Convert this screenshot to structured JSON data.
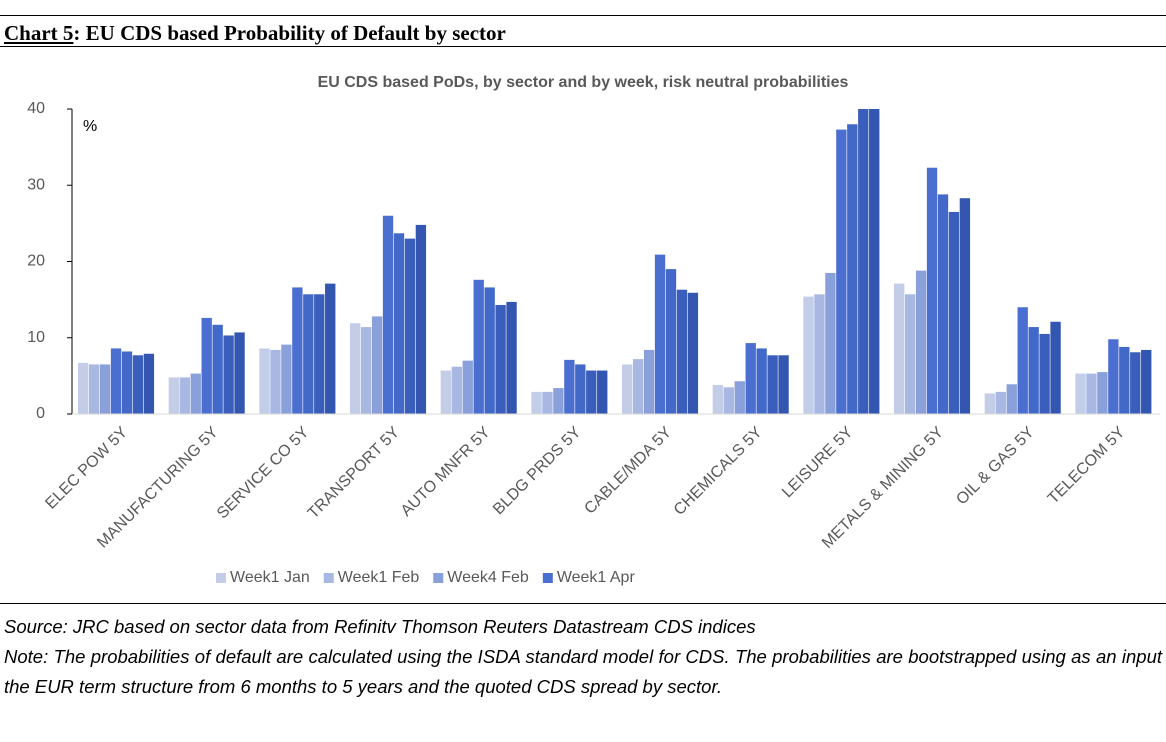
{
  "header": {
    "label": "Chart 5",
    "title": ": EU CDS based Probability of Default by sector"
  },
  "chart_data": {
    "type": "bar",
    "title": "EU CDS based PoDs, by sector and by week, risk neutral probabilities",
    "y_unit": "%",
    "categories": [
      "ELEC POW 5Y",
      "MANUFACTURING 5Y",
      "SERVICE CO 5Y",
      "TRANSPORT 5Y",
      "AUTO MNFR 5Y",
      "BLDG PRDS 5Y",
      "CABLE/MDA 5Y",
      "CHEMICALS 5Y",
      "LEISURE 5Y",
      "METALS & MINING 5Y",
      "OIL & GAS 5Y",
      "TELECOM 5Y"
    ],
    "series": [
      {
        "name": "Week1 Jan",
        "color": "#c3cde8",
        "values": [
          6.7,
          4.8,
          8.6,
          11.9,
          5.7,
          2.9,
          6.5,
          3.8,
          15.4,
          17.1,
          2.7,
          5.3
        ]
      },
      {
        "name": "Week1 Feb",
        "color": "#a8b8e3",
        "values": [
          6.5,
          4.8,
          8.4,
          11.4,
          6.2,
          2.9,
          7.2,
          3.5,
          15.7,
          15.7,
          2.9,
          5.3
        ]
      },
      {
        "name": "Week4 Feb",
        "color": "#8aa0db",
        "values": [
          6.5,
          5.3,
          9.1,
          12.8,
          7.0,
          3.4,
          8.4,
          4.3,
          18.5,
          18.8,
          3.9,
          5.5
        ]
      },
      {
        "name": "Week1 Apr",
        "color": "#4a6fd0",
        "values": [
          8.6,
          12.6,
          16.6,
          26.0,
          17.6,
          7.1,
          20.9,
          9.3,
          37.3,
          32.3,
          14.0,
          9.8
        ]
      },
      {
        "color": "#4268c8",
        "values": [
          8.2,
          11.7,
          15.7,
          23.7,
          16.6,
          6.5,
          19.0,
          8.6,
          38.0,
          28.8,
          11.4,
          8.8
        ]
      },
      {
        "color": "#3b5ebc",
        "values": [
          7.7,
          10.3,
          15.7,
          23.0,
          14.3,
          5.7,
          16.3,
          7.7,
          40,
          26.5,
          10.5,
          8.1
        ]
      },
      {
        "color": "#3356b0",
        "values": [
          7.9,
          10.7,
          17.1,
          24.8,
          14.7,
          5.7,
          15.9,
          7.7,
          40,
          28.3,
          12.1,
          8.4
        ]
      }
    ],
    "ylim": [
      0,
      40
    ],
    "yticks": [
      0,
      10,
      20,
      30,
      40
    ],
    "legend": "bottom"
  },
  "footer": {
    "source": "Source: JRC based on sector data from Refinitv Thomson Reuters Datastream CDS indices",
    "note": "Note: The probabilities of default are calculated using the ISDA standard model for CDS. The probabilities are bootstrapped using as an input the EUR term structure from 6 months to 5 years and the quoted CDS spread by sector."
  }
}
